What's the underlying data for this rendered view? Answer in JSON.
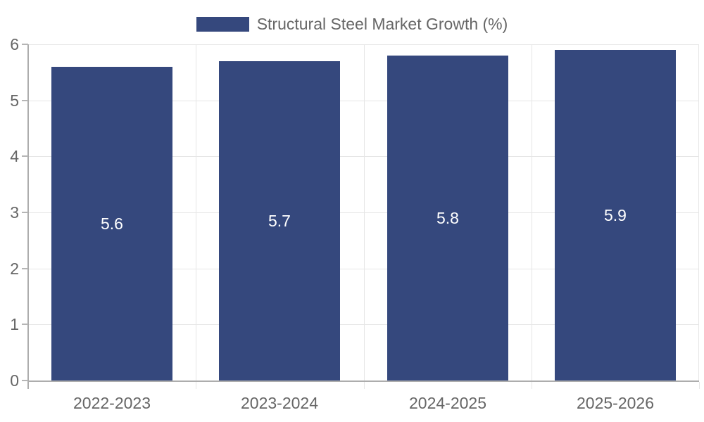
{
  "chart_data": {
    "type": "bar",
    "title": "Structural Steel Market Growth (%)",
    "categories": [
      "2022-2023",
      "2023-2024",
      "2024-2025",
      "2025-2026"
    ],
    "values": [
      5.6,
      5.7,
      5.8,
      5.9
    ],
    "value_labels": [
      "5.6",
      "5.7",
      "5.8",
      "5.9"
    ],
    "xlabel": "",
    "ylabel": "",
    "ylim": [
      0,
      6
    ],
    "y_ticks": [
      "0",
      "1",
      "2",
      "3",
      "4",
      "5",
      "6"
    ],
    "grid": true,
    "legend_position": "top",
    "colors": {
      "bar": "#35487d",
      "bar_label": "#ffffff",
      "axis_text": "#666666",
      "grid_line": "#e6e6e6",
      "axis_line": "#adadad",
      "background": "#ffffff"
    }
  }
}
